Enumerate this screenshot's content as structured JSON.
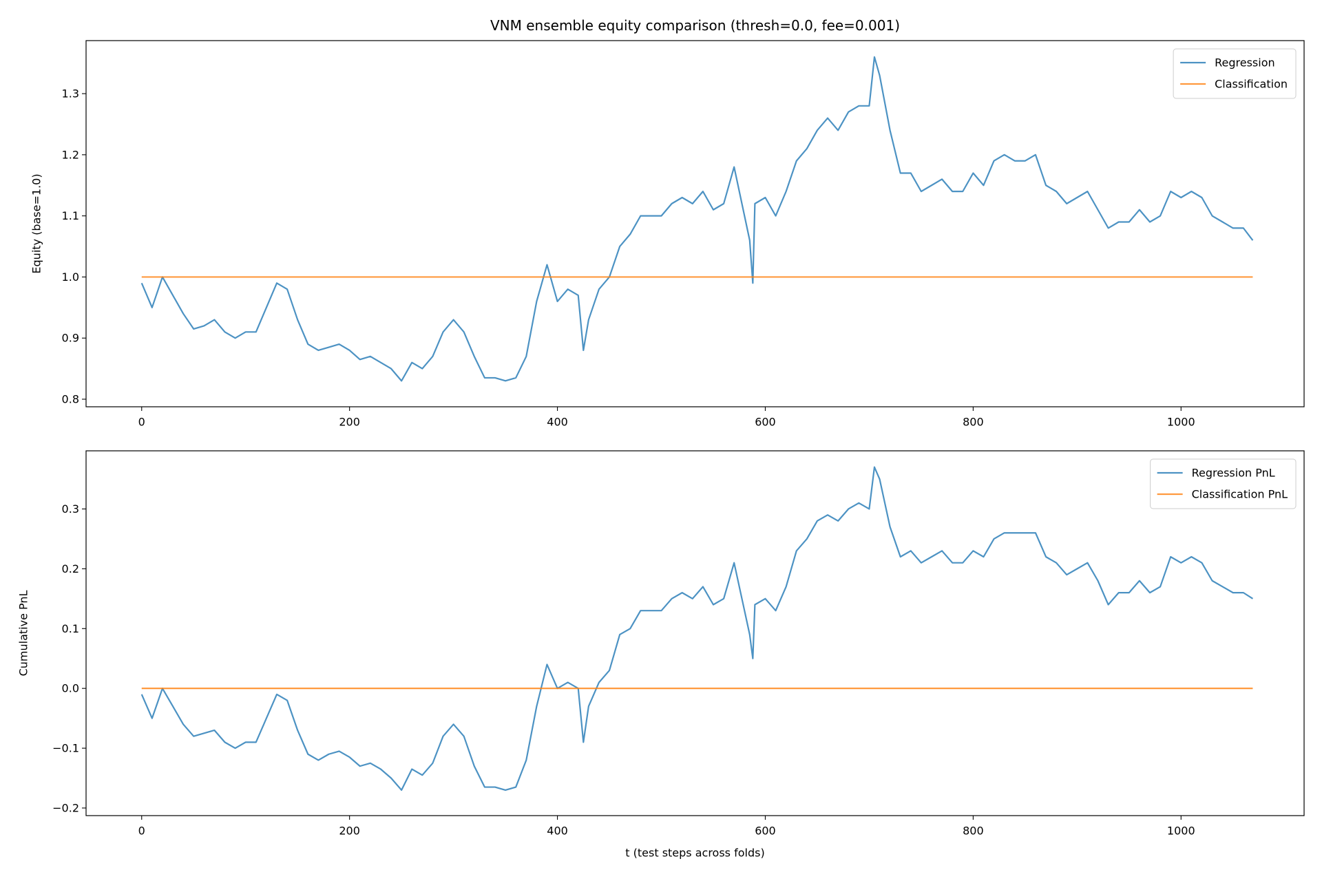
{
  "chart_data": [
    {
      "type": "line",
      "title": "VNM ensemble equity comparison (thresh=0.0, fee=0.001)",
      "y_label": "Equity (base=1.0)",
      "x": [
        0,
        10,
        20,
        30,
        40,
        50,
        60,
        70,
        80,
        90,
        100,
        110,
        120,
        130,
        140,
        150,
        160,
        170,
        180,
        190,
        200,
        210,
        220,
        230,
        240,
        250,
        260,
        270,
        280,
        290,
        300,
        310,
        320,
        330,
        340,
        350,
        360,
        370,
        380,
        390,
        400,
        410,
        420,
        425,
        430,
        440,
        450,
        460,
        470,
        480,
        490,
        500,
        510,
        520,
        530,
        540,
        550,
        560,
        570,
        580,
        585,
        588,
        590,
        600,
        610,
        620,
        630,
        640,
        650,
        660,
        670,
        680,
        690,
        700,
        705,
        710,
        720,
        730,
        740,
        750,
        760,
        770,
        780,
        790,
        800,
        810,
        820,
        830,
        840,
        850,
        860,
        870,
        880,
        890,
        900,
        910,
        920,
        930,
        940,
        950,
        960,
        970,
        980,
        990,
        1000,
        1010,
        1020,
        1030,
        1040,
        1050,
        1060,
        1069
      ],
      "series": [
        {
          "name": "Regression",
          "color": "#1f77b4",
          "values": [
            0.99,
            0.95,
            1.0,
            0.97,
            0.94,
            0.915,
            0.92,
            0.93,
            0.91,
            0.9,
            0.91,
            0.91,
            0.95,
            0.99,
            0.98,
            0.93,
            0.89,
            0.88,
            0.885,
            0.89,
            0.88,
            0.865,
            0.87,
            0.86,
            0.85,
            0.83,
            0.86,
            0.85,
            0.87,
            0.91,
            0.93,
            0.91,
            0.87,
            0.835,
            0.835,
            0.83,
            0.835,
            0.87,
            0.96,
            1.02,
            0.96,
            0.98,
            0.97,
            0.88,
            0.93,
            0.98,
            1.0,
            1.05,
            1.07,
            1.1,
            1.1,
            1.1,
            1.12,
            1.13,
            1.12,
            1.14,
            1.11,
            1.12,
            1.18,
            1.1,
            1.06,
            0.99,
            1.12,
            1.13,
            1.1,
            1.14,
            1.19,
            1.21,
            1.24,
            1.26,
            1.24,
            1.27,
            1.28,
            1.28,
            1.36,
            1.33,
            1.24,
            1.17,
            1.17,
            1.14,
            1.15,
            1.16,
            1.14,
            1.14,
            1.17,
            1.15,
            1.19,
            1.2,
            1.19,
            1.19,
            1.2,
            1.15,
            1.14,
            1.12,
            1.13,
            1.14,
            1.11,
            1.08,
            1.09,
            1.09,
            1.11,
            1.09,
            1.1,
            1.14,
            1.13,
            1.14,
            1.13,
            1.1,
            1.09,
            1.08,
            1.08,
            1.06
          ]
        },
        {
          "name": "Classification",
          "color": "#ff7f0e",
          "x": [
            0,
            1069
          ],
          "values": [
            1,
            1
          ]
        }
      ],
      "xlim": [
        -53.5,
        1118.4
      ],
      "ylim": [
        0.7876,
        1.3868
      ],
      "xticks": [
        0,
        200,
        400,
        600,
        800,
        1000
      ],
      "yticks": [
        0.8,
        0.9,
        {
          "value": 1,
          "label": "1.0"
        },
        1.1,
        1.2,
        1.3
      ],
      "legend": "upper right"
    },
    {
      "type": "line",
      "y_label": "Cumulative PnL",
      "x_label": "t (test steps across folds)",
      "x": [
        0,
        10,
        20,
        30,
        40,
        50,
        60,
        70,
        80,
        90,
        100,
        110,
        120,
        130,
        140,
        150,
        160,
        170,
        180,
        190,
        200,
        210,
        220,
        230,
        240,
        250,
        260,
        270,
        280,
        290,
        300,
        310,
        320,
        330,
        340,
        350,
        360,
        370,
        380,
        390,
        400,
        410,
        420,
        425,
        430,
        440,
        450,
        460,
        470,
        480,
        490,
        500,
        510,
        520,
        530,
        540,
        550,
        560,
        570,
        580,
        585,
        588,
        590,
        600,
        610,
        620,
        630,
        640,
        650,
        660,
        670,
        680,
        690,
        700,
        705,
        710,
        720,
        730,
        740,
        750,
        760,
        770,
        780,
        790,
        800,
        810,
        820,
        830,
        840,
        850,
        860,
        870,
        880,
        890,
        900,
        910,
        920,
        930,
        940,
        950,
        960,
        970,
        980,
        990,
        1000,
        1010,
        1020,
        1030,
        1040,
        1050,
        1060,
        1069
      ],
      "series": [
        {
          "name": "Regression PnL",
          "color": "#1f77b4",
          "values": [
            -0.01,
            -0.05,
            0.0,
            -0.03,
            -0.06,
            -0.08,
            -0.075,
            -0.07,
            -0.09,
            -0.1,
            -0.09,
            -0.09,
            -0.05,
            -0.01,
            -0.02,
            -0.07,
            -0.11,
            -0.12,
            -0.11,
            -0.105,
            -0.115,
            -0.13,
            -0.125,
            -0.135,
            -0.15,
            -0.17,
            -0.135,
            -0.145,
            -0.125,
            -0.08,
            -0.06,
            -0.08,
            -0.13,
            -0.165,
            -0.165,
            -0.17,
            -0.165,
            -0.12,
            -0.03,
            0.04,
            0.0,
            0.01,
            0.0,
            -0.09,
            -0.03,
            0.01,
            0.03,
            0.09,
            0.1,
            0.13,
            0.13,
            0.13,
            0.15,
            0.16,
            0.15,
            0.17,
            0.14,
            0.15,
            0.21,
            0.13,
            0.09,
            0.05,
            0.14,
            0.15,
            0.13,
            0.17,
            0.23,
            0.25,
            0.28,
            0.29,
            0.28,
            0.3,
            0.31,
            0.3,
            0.37,
            0.35,
            0.27,
            0.22,
            0.23,
            0.21,
            0.22,
            0.23,
            0.21,
            0.21,
            0.23,
            0.22,
            0.25,
            0.26,
            0.26,
            0.26,
            0.26,
            0.22,
            0.21,
            0.19,
            0.2,
            0.21,
            0.18,
            0.14,
            0.16,
            0.16,
            0.18,
            0.16,
            0.17,
            0.22,
            0.21,
            0.22,
            0.21,
            0.18,
            0.17,
            0.16,
            0.16,
            0.15
          ]
        },
        {
          "name": "Classification PnL",
          "color": "#ff7f0e",
          "x": [
            0,
            1069
          ],
          "values": [
            0,
            0
          ]
        }
      ],
      "xlim": [
        -53.5,
        1118.4
      ],
      "ylim": [
        -0.2127,
        0.3972
      ],
      "xticks": [
        0,
        200,
        400,
        600,
        800,
        1000
      ],
      "yticks": [
        {
          "value": -0.2,
          "label": "−0.2"
        },
        {
          "value": -0.1,
          "label": "−0.1"
        },
        {
          "value": 0,
          "label": "0.0"
        },
        0.1,
        0.2,
        0.3
      ],
      "legend": "upper right"
    }
  ]
}
